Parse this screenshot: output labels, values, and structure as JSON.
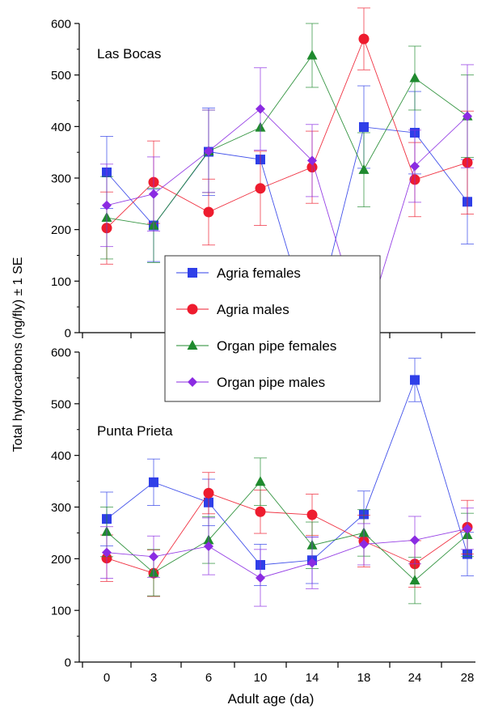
{
  "chart_data": {
    "type": "line",
    "ylabel": "Total hydrocarbons (ng/fly) ± 1 SE",
    "xlabel": "Adult age (da)",
    "categories": [
      "0",
      "3",
      "6",
      "10",
      "14",
      "18",
      "24",
      "28"
    ],
    "ylim": [
      0,
      600
    ],
    "yticks": [
      0,
      100,
      200,
      300,
      400,
      500,
      600
    ],
    "legend": {
      "placement": "center-left",
      "entries": [
        "Agria females",
        "Agria males",
        "Organ pipe females",
        "Organ pipe males"
      ]
    },
    "series_styles": [
      {
        "name": "Agria females",
        "color": "#2f3fe8",
        "marker": "square"
      },
      {
        "name": "Agria males",
        "color": "#ee1c2e",
        "marker": "circle"
      },
      {
        "name": "Organ pipe females",
        "color": "#1f8a2e",
        "marker": "triangle"
      },
      {
        "name": "Organ pipe males",
        "color": "#8b2be2",
        "marker": "diamond"
      }
    ],
    "panels": [
      {
        "title": "Las Bocas",
        "series": [
          {
            "name": "Agria females",
            "values": [
              311,
              208,
              351,
              336,
              0,
              399,
              388,
              254
            ],
            "errors": [
              70,
              70,
              85,
              0,
              0,
              80,
              80,
              82
            ]
          },
          {
            "name": "Agria males",
            "values": [
              203,
              292,
              234,
              280,
              321,
              570,
              297,
              330
            ],
            "errors": [
              70,
              80,
              64,
              72,
              70,
              60,
              72,
              100
            ]
          },
          {
            "name": "Organ pipe females",
            "values": [
              223,
              208,
              352,
              398,
              538,
              316,
              494,
              420
            ],
            "errors": [
              80,
              72,
              80,
              0,
              62,
              72,
              62,
              80
            ]
          },
          {
            "name": "Organ pipe males",
            "values": [
              247,
              269,
              352,
              434,
              334,
              0,
              323,
              420
            ],
            "errors": [
              80,
              72,
              80,
              80,
              70,
              0,
              70,
              100
            ]
          }
        ]
      },
      {
        "title": "Punta Prieta",
        "series": [
          {
            "name": "Agria females",
            "values": [
              277,
              348,
              309,
              188,
              197,
              286,
              546,
              209
            ],
            "errors": [
              52,
              45,
              45,
              40,
              45,
              45,
              42,
              42
            ]
          },
          {
            "name": "Agria males",
            "values": [
              201,
              172,
              327,
              291,
              285,
              234,
              190,
              261
            ],
            "errors": [
              45,
              45,
              40,
              42,
              40,
              50,
              45,
              52
            ]
          },
          {
            "name": "Organ pipe females",
            "values": [
              252,
              173,
              236,
              349,
              226,
              250,
              158,
              246
            ],
            "errors": [
              48,
              45,
              45,
              46,
              45,
              45,
              45,
              42
            ]
          },
          {
            "name": "Organ pipe males",
            "values": [
              212,
              204,
              224,
              163,
              192,
              228,
              236,
              258
            ],
            "errors": [
              50,
              40,
              55,
              55,
              50,
              40,
              46,
              40
            ]
          }
        ]
      }
    ]
  }
}
